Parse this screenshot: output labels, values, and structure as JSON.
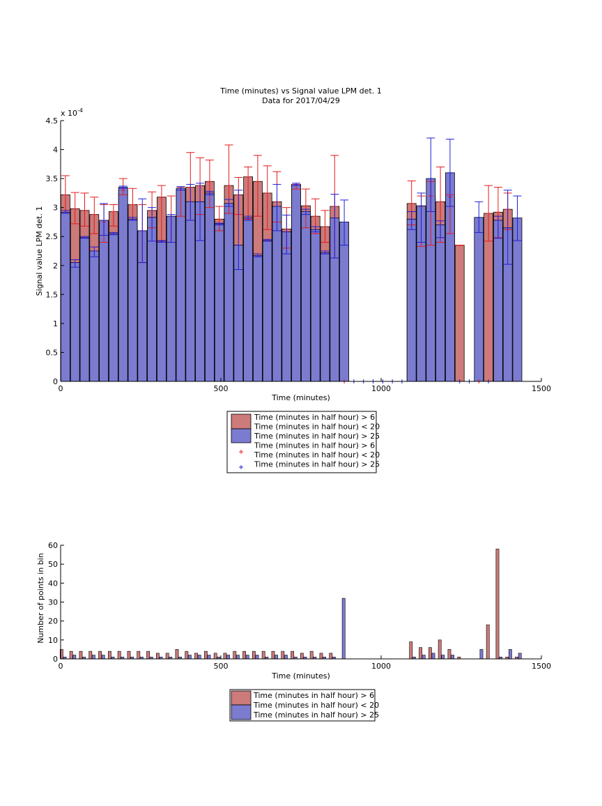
{
  "chart_data": [
    {
      "type": "bar",
      "title": "Time (minutes) vs Signal value LPM det. 1",
      "subtitle": "Data for 2017/04/29",
      "xlabel": "Time (minutes)",
      "ylabel": "Signal value LPM det. 1",
      "y_exponent_label": "x 10",
      "y_exponent_power": "-4",
      "xlim": [
        0,
        1500
      ],
      "ylim": [
        0,
        4.5
      ],
      "xticks": [
        "0",
        "500",
        "1000",
        "1500"
      ],
      "yticks": [
        "0",
        "0.5",
        "1",
        "1.5",
        "2",
        "2.5",
        "3",
        "3.5",
        "4",
        "4.5"
      ],
      "grid": false,
      "legend_position": "below",
      "legend": [
        "Time (minutes in half hour) > 6",
        "Time (minutes in half hour) < 20",
        "Time (minutes in half hour) > 25",
        "Time (minutes in half hour) > 6",
        "Time (minutes in half hour) < 20",
        "Time (minutes in half hour) > 25"
      ],
      "colors": {
        "early": "#cc7a7a",
        "late": "#7b7bd0",
        "early_err": "#e41a1c",
        "late_err": "#1f1fd4"
      },
      "series": [
        {
          "x": [
            15,
            45,
            75,
            105,
            135,
            165,
            195,
            225,
            255,
            285,
            315,
            345,
            375,
            405,
            435,
            465,
            495,
            525,
            555,
            585,
            615,
            645,
            675,
            705,
            735,
            765,
            795,
            825,
            855,
            885,
            1095,
            1125,
            1155,
            1185,
            1215,
            1245,
            1305,
            1335,
            1365,
            1395,
            1425
          ],
          "values": [
            3.22,
            2.98,
            2.95,
            2.88,
            2.75,
            2.93,
            3.3,
            3.05,
            2.6,
            2.95,
            3.18,
            2.85,
            3.3,
            3.35,
            3.38,
            3.45,
            2.8,
            3.38,
            3.22,
            3.53,
            3.45,
            3.25,
            3.1,
            2.63,
            3.4,
            3.03,
            2.85,
            2.67,
            3.02,
            null,
            3.07,
            3.02,
            3.2,
            3.1,
            3.18,
            2.35,
            null,
            2.9,
            2.92,
            2.97,
            null
          ],
          "err_low": [
            2.9,
            2.72,
            2.68,
            2.55,
            2.4,
            2.68,
            3.22,
            2.78,
            2.05,
            2.65,
            2.42,
            2.4,
            2.85,
            2.78,
            2.88,
            3.0,
            2.6,
            2.9,
            2.88,
            2.8,
            2.85,
            2.62,
            2.75,
            2.3,
            3.32,
            2.65,
            2.55,
            2.4,
            2.13,
            null,
            2.7,
            2.33,
            2.35,
            2.4,
            2.55,
            2.35,
            null,
            2.42,
            2.48,
            2.62,
            null
          ],
          "err_high": [
            3.55,
            3.26,
            3.25,
            3.18,
            3.05,
            3.05,
            3.5,
            3.33,
            3.05,
            3.27,
            3.38,
            3.2,
            3.35,
            3.95,
            3.86,
            3.82,
            3.02,
            4.08,
            3.52,
            3.7,
            3.9,
            3.72,
            3.62,
            3.0,
            3.4,
            3.32,
            3.15,
            2.95,
            3.9,
            null,
            3.46,
            3.2,
            3.45,
            3.7,
            3.22,
            2.35,
            null,
            3.38,
            3.35,
            3.25,
            null
          ]
        },
        {
          "x": [
            15,
            45,
            75,
            105,
            135,
            165,
            195,
            225,
            255,
            285,
            315,
            345,
            375,
            405,
            435,
            465,
            495,
            525,
            555,
            585,
            615,
            645,
            675,
            705,
            735,
            765,
            795,
            825,
            855,
            885,
            1095,
            1125,
            1155,
            1185,
            1215,
            1245,
            1305,
            1335,
            1365,
            1395,
            1425
          ],
          "values": [
            2.92,
            2.05,
            2.48,
            2.25,
            2.78,
            2.55,
            3.35,
            2.8,
            2.6,
            2.83,
            2.42,
            2.85,
            3.33,
            3.1,
            3.1,
            3.25,
            2.72,
            3.07,
            2.35,
            2.82,
            2.17,
            2.43,
            3.02,
            2.58,
            3.4,
            2.93,
            2.62,
            2.22,
            2.82,
            2.75,
            2.8,
            3.03,
            3.5,
            2.7,
            3.6,
            null,
            2.83,
            null,
            2.78,
            2.65,
            2.82
          ],
          "err_low": [
            2.9,
            1.97,
            2.47,
            2.15,
            2.52,
            2.53,
            3.33,
            2.78,
            2.05,
            2.42,
            2.4,
            2.4,
            3.3,
            2.78,
            2.43,
            3.22,
            2.7,
            3.02,
            1.93,
            2.78,
            2.15,
            2.42,
            2.6,
            2.2,
            3.38,
            2.88,
            2.58,
            2.2,
            2.13,
            2.35,
            2.62,
            2.4,
            2.93,
            2.48,
            3.02,
            null,
            2.57,
            null,
            2.47,
            2.02,
            2.43
          ],
          "err_high": [
            2.95,
            2.1,
            2.5,
            2.32,
            3.07,
            2.57,
            3.37,
            2.83,
            3.15,
            3.0,
            2.43,
            2.88,
            3.36,
            3.4,
            3.42,
            3.28,
            2.73,
            3.14,
            3.3,
            2.85,
            2.2,
            2.45,
            3.4,
            2.87,
            3.42,
            2.97,
            2.67,
            2.25,
            3.23,
            3.13,
            2.93,
            3.25,
            4.2,
            2.77,
            4.18,
            null,
            3.1,
            null,
            2.85,
            3.3,
            3.2
          ]
        }
      ],
      "zero_markers": {
        "early_x": [
          885,
          1305
        ],
        "late_x": [
          915,
          945,
          975,
          1005,
          1035,
          1065,
          1245,
          1275,
          1335
        ]
      }
    },
    {
      "type": "bar",
      "xlabel": "Time (minutes)",
      "ylabel": "Number of points in bin",
      "xlim": [
        0,
        1500
      ],
      "ylim": [
        0,
        60
      ],
      "xticks": [
        "0",
        "500",
        "1000",
        "1500"
      ],
      "yticks": [
        "0",
        "10",
        "20",
        "30",
        "40",
        "50",
        "60"
      ],
      "grid": false,
      "legend_position": "below",
      "legend": [
        "Time (minutes in half hour) > 6",
        "Time (minutes in half hour) < 20",
        "Time (minutes in half hour) > 25"
      ],
      "colors": {
        "early": "#cc7a7a",
        "late": "#7b7bd0"
      },
      "series": [
        {
          "x": [
            3,
            33,
            63,
            93,
            123,
            153,
            183,
            213,
            243,
            273,
            303,
            333,
            363,
            393,
            423,
            453,
            483,
            513,
            543,
            573,
            603,
            633,
            663,
            693,
            723,
            753,
            783,
            813,
            843,
            873,
            1093,
            1123,
            1153,
            1183,
            1213,
            1243,
            1303,
            1333,
            1363,
            1393,
            1423
          ],
          "values": [
            5,
            4,
            4,
            4,
            4,
            4,
            4,
            4,
            4,
            4,
            3,
            3,
            5,
            4,
            3,
            4,
            3,
            3,
            4,
            4,
            4,
            4,
            4,
            4,
            4,
            3,
            4,
            3,
            3,
            0,
            9,
            6,
            6,
            10,
            5,
            1,
            0,
            18,
            58,
            1,
            1
          ]
        },
        {
          "x": [
            13,
            43,
            73,
            103,
            133,
            163,
            193,
            223,
            253,
            283,
            313,
            343,
            373,
            403,
            433,
            463,
            493,
            523,
            553,
            583,
            613,
            643,
            673,
            703,
            733,
            763,
            793,
            823,
            853,
            883,
            1103,
            1133,
            1163,
            1193,
            1223,
            1253,
            1313,
            1343,
            1373,
            1403,
            1433
          ],
          "values": [
            1,
            2,
            1,
            2,
            2,
            1,
            1,
            1,
            1,
            1,
            1,
            1,
            1,
            2,
            2,
            2,
            1,
            2,
            2,
            2,
            2,
            1,
            2,
            2,
            1,
            1,
            1,
            1,
            1,
            32,
            1,
            2,
            3,
            2,
            2,
            0,
            5,
            0,
            1,
            5,
            3
          ]
        }
      ]
    }
  ]
}
